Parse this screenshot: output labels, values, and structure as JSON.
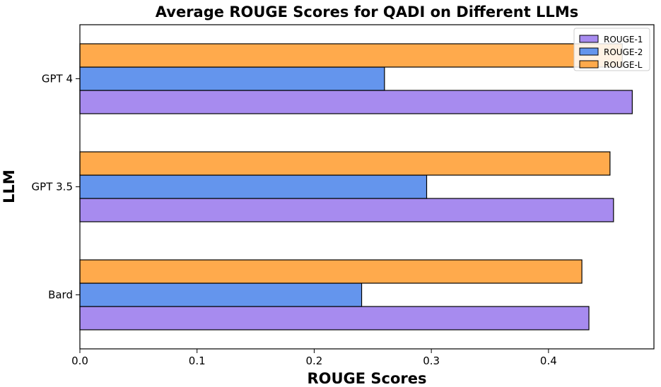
{
  "chart_data": {
    "type": "bar",
    "orientation": "horizontal",
    "title": "Average ROUGE Scores for QADI on Different LLMs",
    "xlabel": "ROUGE Scores",
    "ylabel": "LLM",
    "categories": [
      "Bard",
      "GPT 3.5",
      "GPT 4"
    ],
    "series": [
      {
        "name": "ROUGE-1",
        "color": "#a78bef",
        "values": [
          0.4345,
          0.4555,
          0.4715
        ]
      },
      {
        "name": "ROUGE-2",
        "color": "#6495ed",
        "values": [
          0.2405,
          0.296,
          0.26
        ]
      },
      {
        "name": "ROUGE-L",
        "color": "#ffaa4c",
        "values": [
          0.4285,
          0.4525,
          0.463
        ]
      }
    ],
    "xlim": [
      0,
      0.49
    ],
    "xticks": [
      0.0,
      0.1,
      0.2,
      0.3,
      0.4
    ],
    "xtick_labels": [
      "0.0",
      "0.1",
      "0.2",
      "0.3",
      "0.4"
    ],
    "grid": false,
    "legend_position": "top-right"
  }
}
